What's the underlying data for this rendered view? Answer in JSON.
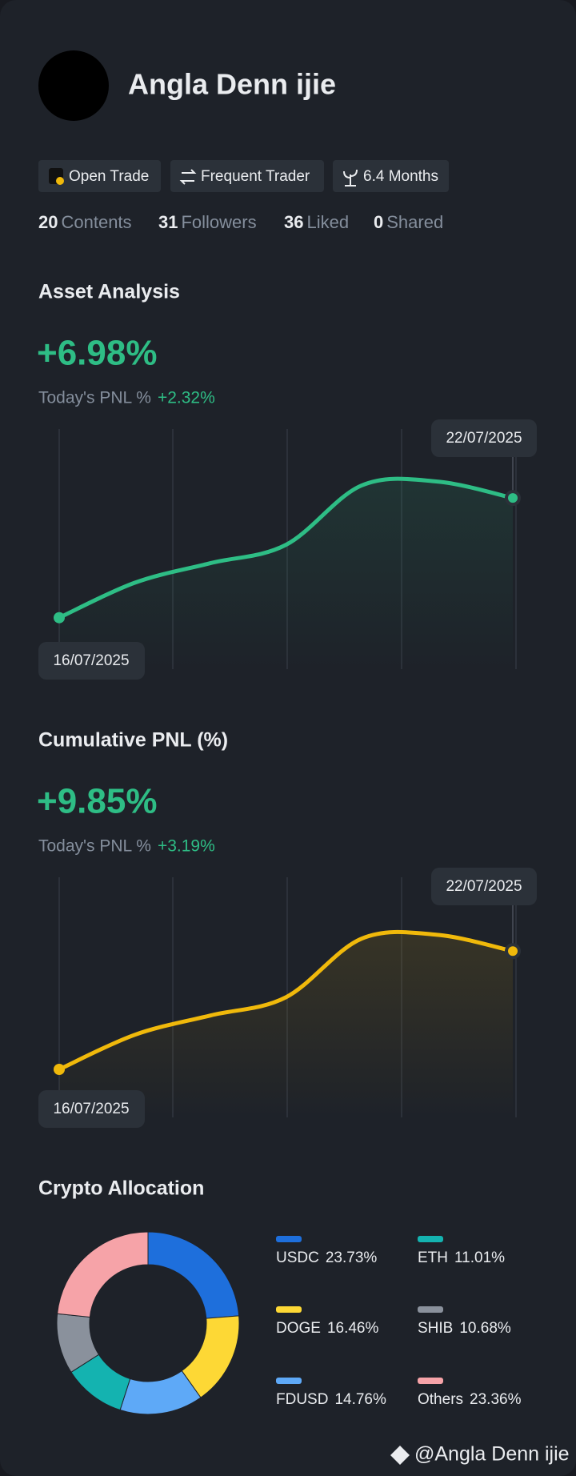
{
  "profile": {
    "name": "Angla Denn ijie",
    "badges": [
      "Open Trade",
      "Frequent Trader",
      "6.4 Months"
    ],
    "stats": [
      {
        "count": 20,
        "label": "Contents"
      },
      {
        "count": 31,
        "label": "Followers"
      },
      {
        "count": 36,
        "label": "Liked"
      },
      {
        "count": 0,
        "label": "Shared"
      }
    ]
  },
  "chart_data": [
    {
      "type": "line",
      "title": "Asset Analysis",
      "headline": "+6.98%",
      "subtitle": "Today's PNL %",
      "change": "+2.32%",
      "start_date": "16/07/2025",
      "end_date": "22/07/2025",
      "values": [
        0,
        2.04,
        3.18,
        4.25,
        7.71,
        7.94,
        6.98
      ],
      "ylim": [
        -3,
        11
      ],
      "color": "#2ebd85"
    },
    {
      "type": "line",
      "title": "Cumulative PNL (%)",
      "headline": "+9.85%",
      "subtitle": "Today's PNL %",
      "change": "+3.19%",
      "start_date": "16/07/2025",
      "end_date": "22/07/2025",
      "values": [
        0,
        2.88,
        4.49,
        6.01,
        10.89,
        11.21,
        9.85
      ],
      "ylim": [
        -4,
        16
      ],
      "color": "#f0b90b"
    },
    {
      "type": "pie",
      "title": "Crypto Allocation",
      "categories": [
        "USDC",
        "DOGE",
        "FDUSD",
        "ETH",
        "SHIB",
        "Others"
      ],
      "values": [
        23.73,
        16.46,
        14.76,
        11.01,
        10.68,
        23.36
      ],
      "value_labels": [
        "23.73%",
        "16.46%",
        "14.76%",
        "11.01%",
        "10.68%",
        "23.36%"
      ],
      "colors": [
        "#1e6fdc",
        "#fdd835",
        "#5ea9f7",
        "#14b3b0",
        "#8a919c",
        "#f6a3a8"
      ]
    }
  ],
  "footer": "@Angla Denn ijie"
}
